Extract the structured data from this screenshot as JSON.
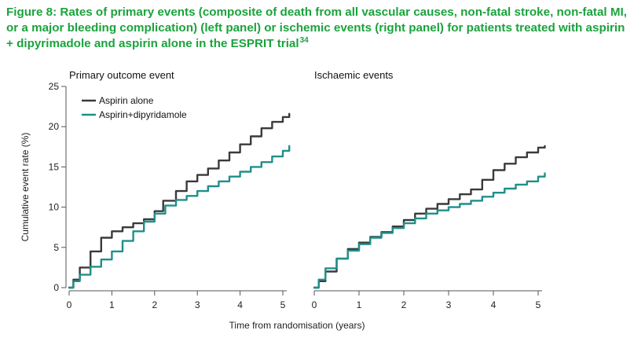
{
  "figure": {
    "caption": "Figure 8: Rates of primary events (composite of death from all vascular causes, non-fatal stroke, non-fatal MI, or a major bleeding complication) (left panel) or ischemic events (right panel) for patients treated with aspirin + dipyrimadole and aspirin alone in the ESPRIT trial",
    "reference": "34"
  },
  "chart_data": [
    {
      "type": "line",
      "title": "Primary outcome event",
      "xlabel": "Time from randomisation (years)",
      "ylabel": "Cumulative event rate (%)",
      "xlim": [
        0,
        5
      ],
      "ylim": [
        0,
        25
      ],
      "xticks": [
        0,
        1,
        2,
        3,
        4,
        5
      ],
      "yticks": [
        0,
        5,
        10,
        15,
        20,
        25
      ],
      "grid": false,
      "legend": "top-left",
      "series": [
        {
          "name": "Aspirin alone",
          "color": "#3a3a3a",
          "x": [
            0,
            0.1,
            0.25,
            0.5,
            0.75,
            1.0,
            1.25,
            1.5,
            1.75,
            2.0,
            2.2,
            2.5,
            2.75,
            3.0,
            3.25,
            3.5,
            3.75,
            4.0,
            4.25,
            4.5,
            4.75,
            5.0,
            5.15
          ],
          "y": [
            0,
            1.0,
            2.5,
            4.5,
            6.2,
            7.0,
            7.5,
            8.0,
            8.5,
            9.5,
            10.8,
            12.0,
            13.2,
            14.0,
            14.8,
            15.8,
            16.8,
            17.8,
            18.8,
            19.8,
            20.6,
            21.2,
            21.6
          ]
        },
        {
          "name": "Aspirin+dipyridamole",
          "color": "#1f8f8a",
          "x": [
            0,
            0.1,
            0.25,
            0.5,
            0.75,
            1.0,
            1.25,
            1.5,
            1.75,
            2.0,
            2.25,
            2.5,
            2.75,
            3.0,
            3.25,
            3.5,
            3.75,
            4.0,
            4.25,
            4.5,
            4.75,
            5.0,
            5.15
          ],
          "y": [
            0,
            0.8,
            1.6,
            2.6,
            3.5,
            4.5,
            5.8,
            7.0,
            8.2,
            9.2,
            10.2,
            10.9,
            11.4,
            12.0,
            12.6,
            13.2,
            13.8,
            14.4,
            15.0,
            15.6,
            16.3,
            17.0,
            17.6
          ]
        }
      ]
    },
    {
      "type": "line",
      "title": "Ischaemic events",
      "xlabel": "Time from randomisation (years)",
      "ylabel": "",
      "xlim": [
        0,
        5
      ],
      "ylim": [
        0,
        25
      ],
      "xticks": [
        0,
        1,
        2,
        3,
        4,
        5
      ],
      "yticks": [],
      "grid": false,
      "legend": "none",
      "series": [
        {
          "name": "Aspirin alone",
          "color": "#3a3a3a",
          "x": [
            0,
            0.1,
            0.25,
            0.5,
            0.75,
            1.0,
            1.25,
            1.5,
            1.75,
            2.0,
            2.25,
            2.5,
            2.75,
            3.0,
            3.25,
            3.5,
            3.75,
            4.0,
            4.25,
            4.5,
            4.75,
            5.0,
            5.15
          ],
          "y": [
            0,
            0.8,
            2.0,
            3.6,
            4.8,
            5.6,
            6.3,
            6.9,
            7.6,
            8.4,
            9.2,
            9.8,
            10.4,
            11.0,
            11.6,
            12.2,
            13.4,
            14.6,
            15.4,
            16.2,
            16.8,
            17.4,
            17.6
          ]
        },
        {
          "name": "Aspirin+dipyridamole",
          "color": "#1f8f8a",
          "x": [
            0,
            0.1,
            0.25,
            0.5,
            0.75,
            1.0,
            1.25,
            1.5,
            1.75,
            2.0,
            2.25,
            2.5,
            2.75,
            3.0,
            3.25,
            3.5,
            3.75,
            4.0,
            4.25,
            4.5,
            4.75,
            5.0,
            5.15
          ],
          "y": [
            0,
            1.0,
            2.4,
            3.6,
            4.6,
            5.4,
            6.2,
            6.8,
            7.4,
            8.0,
            8.6,
            9.2,
            9.6,
            10.0,
            10.4,
            10.8,
            11.3,
            11.8,
            12.3,
            12.8,
            13.2,
            13.8,
            14.2
          ]
        }
      ]
    }
  ]
}
